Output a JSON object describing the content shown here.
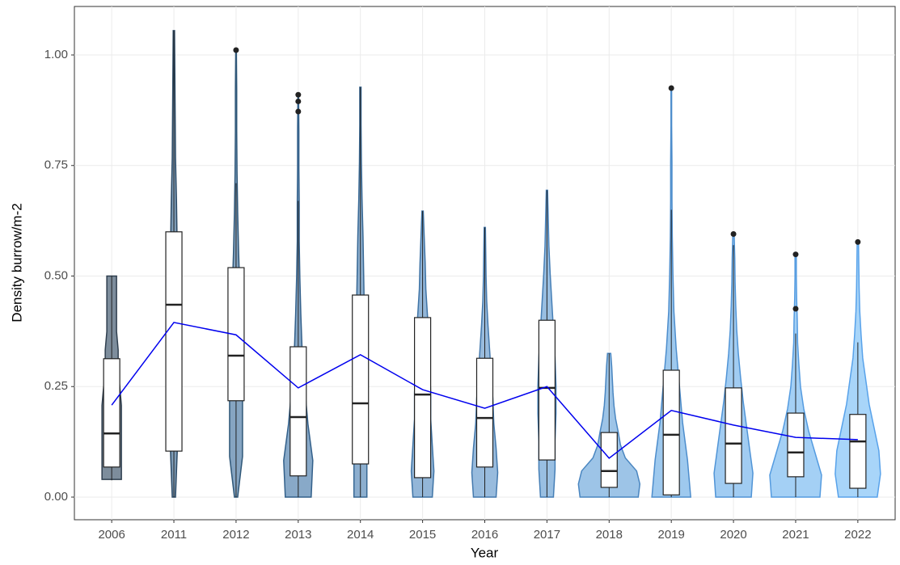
{
  "chart_data": {
    "type": "violin",
    "x_label": "Year",
    "y_label": "Density burrow/m-2",
    "categories": [
      "2006",
      "2011",
      "2012",
      "2013",
      "2014",
      "2015",
      "2016",
      "2017",
      "2018",
      "2019",
      "2020",
      "2021",
      "2022"
    ],
    "ylim": [
      -0.0512,
      1.1097
    ],
    "yticks": [
      {
        "value": 0,
        "label": "0.00"
      },
      {
        "value": 0.25,
        "label": "0.25"
      },
      {
        "value": 0.5,
        "label": "0.50"
      },
      {
        "value": 0.75,
        "label": "0.75"
      },
      {
        "value": 1,
        "label": "1.00"
      }
    ],
    "grid": true,
    "colors": [
      "#7d8d9c",
      "#7f9db8",
      "#86a5c2",
      "#88a9c8",
      "#8dafcf",
      "#93b6d8",
      "#98bbdd",
      "#99bfe2",
      "#9dc4e7",
      "#9ec9ee",
      "#a1ccf2",
      "#a4d0f5",
      "#a8d5f9"
    ],
    "outline_colors": [
      "#2f3f4f",
      "#2c4a66",
      "#2f5778",
      "#33608a",
      "#386894",
      "#3f74a6",
      "#4479ad",
      "#467fb6",
      "#4a86c0",
      "#4d8dcc",
      "#5094d6",
      "#549be0",
      "#58a2ea"
    ],
    "line_color": "#0000ee",
    "violins": [
      {
        "min": 0.04,
        "max": 0.5,
        "density": [
          0.3,
          0.3,
          0.3,
          0.3,
          0.3,
          0.25,
          0.2,
          0.2,
          0.15,
          0.15,
          0.15,
          0.15
        ]
      },
      {
        "min": 0,
        "max": 1.055,
        "density": [
          0.05,
          0.1,
          0.15,
          0.15,
          0.15,
          0.12,
          0.1,
          0.08,
          0.05,
          0.04,
          0.03,
          0.02
        ]
      },
      {
        "min": 0,
        "max": 1.011,
        "density": [
          0.05,
          0.2,
          0.2,
          0.2,
          0.18,
          0.12,
          0.08,
          0.05,
          0.03,
          0.02,
          0.02,
          0.01
        ]
      },
      {
        "min": 0,
        "max": 0.91,
        "density": [
          0.4,
          0.45,
          0.3,
          0.2,
          0.12,
          0.08,
          0.05,
          0.03,
          0.03,
          0.02,
          0.02,
          0.01
        ]
      },
      {
        "min": 0,
        "max": 0.927,
        "density": [
          0.2,
          0.2,
          0.2,
          0.18,
          0.15,
          0.12,
          0.1,
          0.08,
          0.05,
          0.03,
          0.02,
          0.02
        ]
      },
      {
        "min": 0,
        "max": 0.647,
        "density": [
          0.3,
          0.35,
          0.3,
          0.25,
          0.25,
          0.22,
          0.2,
          0.15,
          0.1,
          0.08,
          0.05,
          0.02
        ]
      },
      {
        "min": 0,
        "max": 0.61,
        "density": [
          0.35,
          0.4,
          0.35,
          0.28,
          0.25,
          0.2,
          0.15,
          0.1,
          0.06,
          0.04,
          0.03,
          0.02
        ]
      },
      {
        "min": 0,
        "max": 0.694,
        "density": [
          0.2,
          0.25,
          0.25,
          0.28,
          0.28,
          0.25,
          0.2,
          0.15,
          0.1,
          0.06,
          0.04,
          0.02
        ]
      },
      {
        "min": 0,
        "max": 0.325,
        "density": [
          0.9,
          0.95,
          0.85,
          0.5,
          0.35,
          0.28,
          0.2,
          0.15,
          0.12,
          0.1,
          0.08,
          0.05
        ]
      },
      {
        "min": 0,
        "max": 0.925,
        "density": [
          0.6,
          0.5,
          0.35,
          0.25,
          0.15,
          0.08,
          0.05,
          0.03,
          0.02,
          0.02,
          0.01,
          0.01
        ]
      },
      {
        "min": 0,
        "max": 0.595,
        "density": [
          0.55,
          0.6,
          0.5,
          0.4,
          0.3,
          0.22,
          0.15,
          0.1,
          0.07,
          0.05,
          0.04,
          0.02
        ]
      },
      {
        "min": 0,
        "max": 0.549,
        "density": [
          0.75,
          0.8,
          0.6,
          0.4,
          0.25,
          0.15,
          0.1,
          0.06,
          0.05,
          0.03,
          0.02,
          0.02
        ]
      },
      {
        "min": 0,
        "max": 0.577,
        "density": [
          0.6,
          0.7,
          0.65,
          0.5,
          0.35,
          0.25,
          0.15,
          0.1,
          0.06,
          0.04,
          0.03,
          0.02
        ]
      }
    ],
    "boxes": [
      {
        "min": 0.038,
        "q1": 0.068,
        "median": 0.144,
        "q3": 0.313,
        "max": 0.5,
        "outliers": []
      },
      {
        "min": 0,
        "q1": 0.104,
        "median": 0.435,
        "q3": 0.6,
        "max": 1.055,
        "outliers": []
      },
      {
        "min": 0,
        "q1": 0.218,
        "median": 0.32,
        "q3": 0.519,
        "max": 0.71,
        "outliers": [
          1.011
        ]
      },
      {
        "min": 0,
        "q1": 0.048,
        "median": 0.181,
        "q3": 0.34,
        "max": 0.67,
        "outliers": [
          0.91,
          0.895,
          0.872
        ]
      },
      {
        "min": 0,
        "q1": 0.075,
        "median": 0.212,
        "q3": 0.457,
        "max": 0.927,
        "outliers": []
      },
      {
        "min": 0,
        "q1": 0.044,
        "median": 0.232,
        "q3": 0.406,
        "max": 0.647,
        "outliers": []
      },
      {
        "min": 0,
        "q1": 0.068,
        "median": 0.179,
        "q3": 0.314,
        "max": 0.61,
        "outliers": []
      },
      {
        "min": 0,
        "q1": 0.084,
        "median": 0.247,
        "q3": 0.4,
        "max": 0.694,
        "outliers": []
      },
      {
        "min": 0,
        "q1": 0.022,
        "median": 0.059,
        "q3": 0.146,
        "max": 0.325,
        "outliers": []
      },
      {
        "min": 0,
        "q1": 0.005,
        "median": 0.141,
        "q3": 0.287,
        "max": 0.65,
        "outliers": [
          0.925
        ]
      },
      {
        "min": 0,
        "q1": 0.031,
        "median": 0.121,
        "q3": 0.247,
        "max": 0.57,
        "outliers": [
          0.595
        ]
      },
      {
        "min": 0,
        "q1": 0.046,
        "median": 0.101,
        "q3": 0.19,
        "max": 0.37,
        "outliers": [
          0.549,
          0.426
        ]
      },
      {
        "min": 0,
        "q1": 0.02,
        "median": 0.126,
        "q3": 0.187,
        "max": 0.35,
        "outliers": [
          0.577
        ]
      }
    ],
    "means": [
      0.208,
      0.395,
      0.367,
      0.247,
      0.322,
      0.243,
      0.201,
      0.25,
      0.088,
      0.196,
      0.163,
      0.135,
      0.13
    ]
  }
}
